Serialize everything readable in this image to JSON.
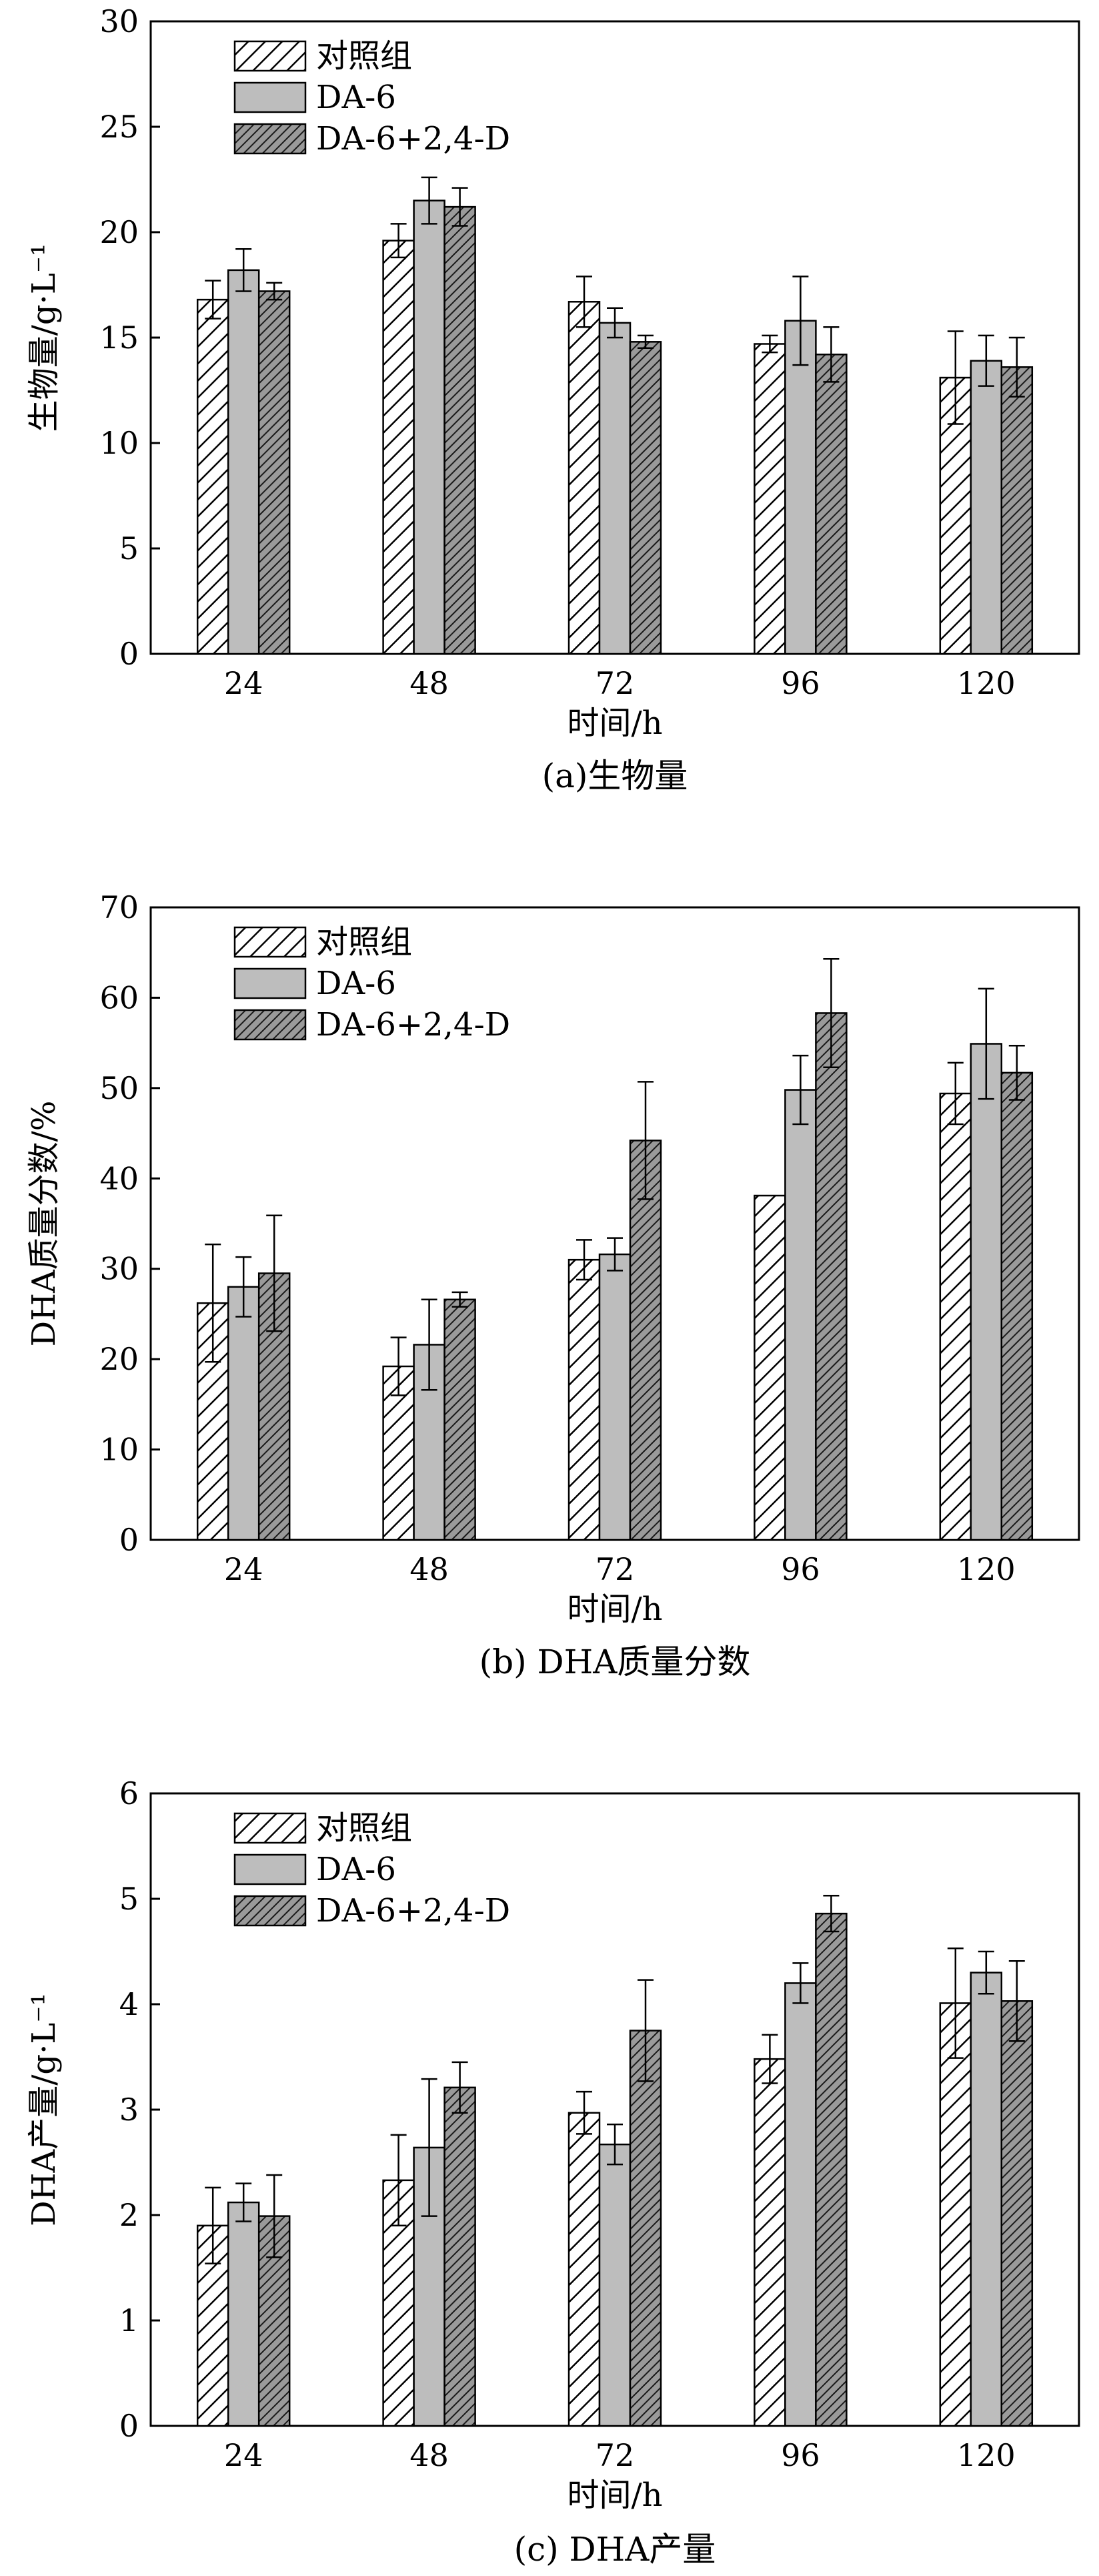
{
  "chart_data": [
    {
      "id": "a",
      "type": "bar",
      "categories": [
        "24",
        "48",
        "72",
        "96",
        "120"
      ],
      "series": [
        {
          "name": "对照组",
          "style": "hatch-light",
          "values": [
            16.8,
            19.6,
            16.7,
            14.7,
            13.1
          ],
          "errors": [
            0.9,
            0.8,
            1.2,
            0.4,
            2.2
          ]
        },
        {
          "name": "DA-6",
          "style": "gray",
          "values": [
            18.2,
            21.5,
            15.7,
            15.8,
            13.9
          ],
          "errors": [
            1.0,
            1.1,
            0.7,
            2.1,
            1.2
          ]
        },
        {
          "name": "DA-6+2,4-D",
          "style": "hatch-dark",
          "values": [
            17.2,
            21.2,
            14.8,
            14.2,
            13.6
          ],
          "errors": [
            0.4,
            0.9,
            0.3,
            1.3,
            1.4
          ]
        }
      ],
      "ylim": [
        0,
        30
      ],
      "yticks": [
        0,
        5,
        10,
        15,
        20,
        25,
        30
      ],
      "ylabel": "生物量/g·L⁻¹",
      "xlabel": "时间/h",
      "title": "(a)生物量",
      "legend": "top-left"
    },
    {
      "id": "b",
      "type": "bar",
      "categories": [
        "24",
        "48",
        "72",
        "96",
        "120"
      ],
      "series": [
        {
          "name": "对照组",
          "style": "hatch-light",
          "values": [
            26.2,
            19.2,
            31.0,
            38.1,
            49.4
          ],
          "errors": [
            6.5,
            3.2,
            2.2,
            0.0,
            3.4
          ]
        },
        {
          "name": "DA-6",
          "style": "gray",
          "values": [
            28.0,
            21.6,
            31.6,
            49.8,
            54.9
          ],
          "errors": [
            3.3,
            5.0,
            1.8,
            3.8,
            6.1
          ]
        },
        {
          "name": "DA-6+2,4-D",
          "style": "hatch-dark",
          "values": [
            29.5,
            26.6,
            44.2,
            58.3,
            51.7
          ],
          "errors": [
            6.4,
            0.8,
            6.5,
            6.0,
            3.0
          ]
        }
      ],
      "ylim": [
        0,
        70
      ],
      "yticks": [
        0,
        10,
        20,
        30,
        40,
        50,
        60,
        70
      ],
      "ylabel": "DHA质量分数/%",
      "xlabel": "时间/h",
      "title": "(b) DHA质量分数",
      "legend": "top-left"
    },
    {
      "id": "c",
      "type": "bar",
      "categories": [
        "24",
        "48",
        "72",
        "96",
        "120"
      ],
      "series": [
        {
          "name": "对照组",
          "style": "hatch-light",
          "values": [
            1.9,
            2.33,
            2.97,
            3.48,
            4.01
          ],
          "errors": [
            0.36,
            0.43,
            0.2,
            0.23,
            0.52
          ]
        },
        {
          "name": "DA-6",
          "style": "gray",
          "values": [
            2.12,
            2.64,
            2.67,
            4.2,
            4.3
          ],
          "errors": [
            0.18,
            0.65,
            0.19,
            0.19,
            0.2
          ]
        },
        {
          "name": "DA-6+2,4-D",
          "style": "hatch-dark",
          "values": [
            1.99,
            3.21,
            3.75,
            4.86,
            4.03
          ],
          "errors": [
            0.39,
            0.24,
            0.48,
            0.17,
            0.38
          ]
        }
      ],
      "ylim": [
        0,
        6
      ],
      "yticks": [
        0,
        1,
        2,
        3,
        4,
        5,
        6
      ],
      "ylabel": "DHA产量/g·L⁻¹",
      "xlabel": "时间/h",
      "title": "(c) DHA产量",
      "legend": "top-left"
    }
  ]
}
